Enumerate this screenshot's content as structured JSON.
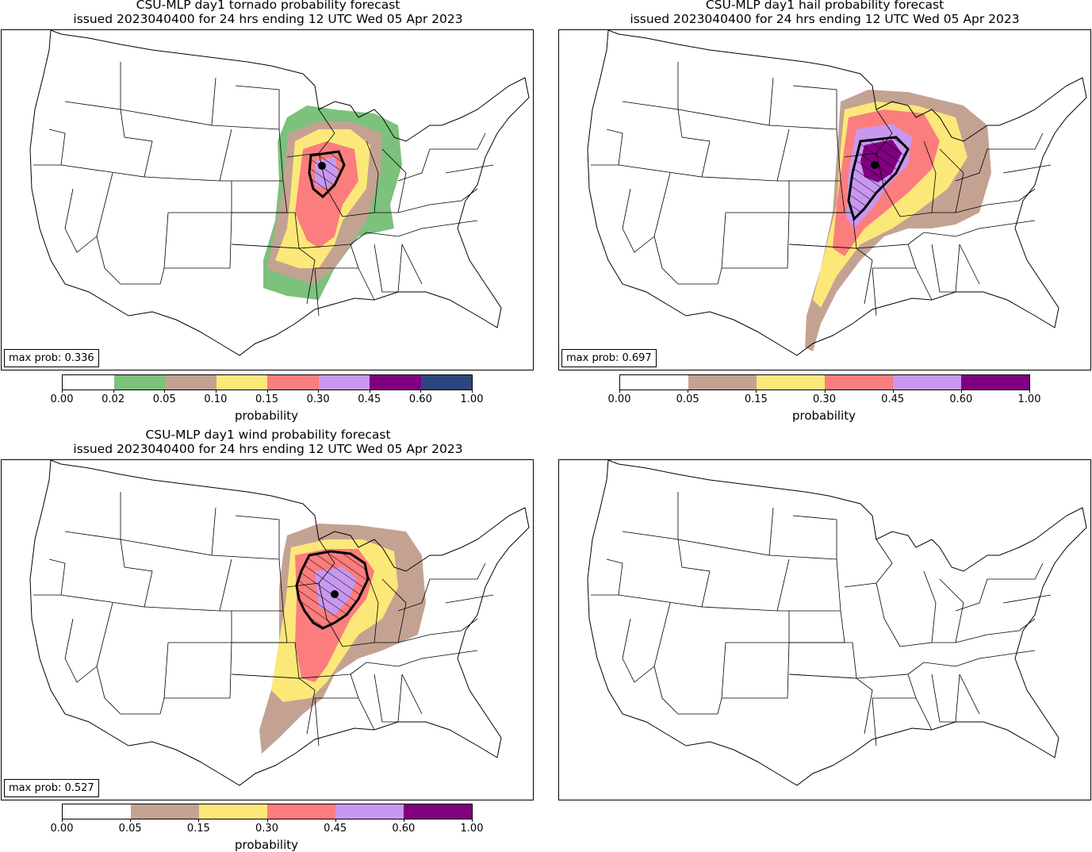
{
  "panels": {
    "tornado": {
      "title_line1": "CSU-MLP day1 tornado probability forecast",
      "title_line2": "issued 2023040400 for 24 hrs ending 12 UTC Wed 05 Apr 2023",
      "max_prob": "max prob: 0.336",
      "colorbar_label": "probability",
      "colorbar_ticks": [
        "0.00",
        "0.02",
        "0.05",
        "0.10",
        "0.15",
        "0.30",
        "0.45",
        "0.60",
        "1.00"
      ],
      "colorbar_colors": [
        "#ffffff",
        "#7cc17c",
        "#c4a292",
        "#fbe879",
        "#fb7d7d",
        "#c898f0",
        "#800080",
        "#2d4680"
      ]
    },
    "hail": {
      "title_line1": "CSU-MLP day1 hail probability forecast",
      "title_line2": "issued 2023040400 for 24 hrs ending 12 UTC Wed 05 Apr 2023",
      "max_prob": "max prob: 0.697",
      "colorbar_label": "probability",
      "colorbar_ticks": [
        "0.00",
        "0.05",
        "0.15",
        "0.30",
        "0.45",
        "0.60",
        "1.00"
      ],
      "colorbar_colors": [
        "#ffffff",
        "#c4a292",
        "#fbe879",
        "#fb7d7d",
        "#c898f0",
        "#800080"
      ]
    },
    "wind": {
      "title_line1": "CSU-MLP day1 wind probability forecast",
      "title_line2": "issued 2023040400 for 24 hrs ending 12 UTC Wed 05 Apr 2023",
      "max_prob": "max prob: 0.527",
      "colorbar_label": "probability",
      "colorbar_ticks": [
        "0.00",
        "0.05",
        "0.15",
        "0.30",
        "0.45",
        "0.60",
        "1.00"
      ],
      "colorbar_colors": [
        "#ffffff",
        "#c4a292",
        "#fbe879",
        "#fb7d7d",
        "#c898f0",
        "#800080"
      ]
    }
  }
}
